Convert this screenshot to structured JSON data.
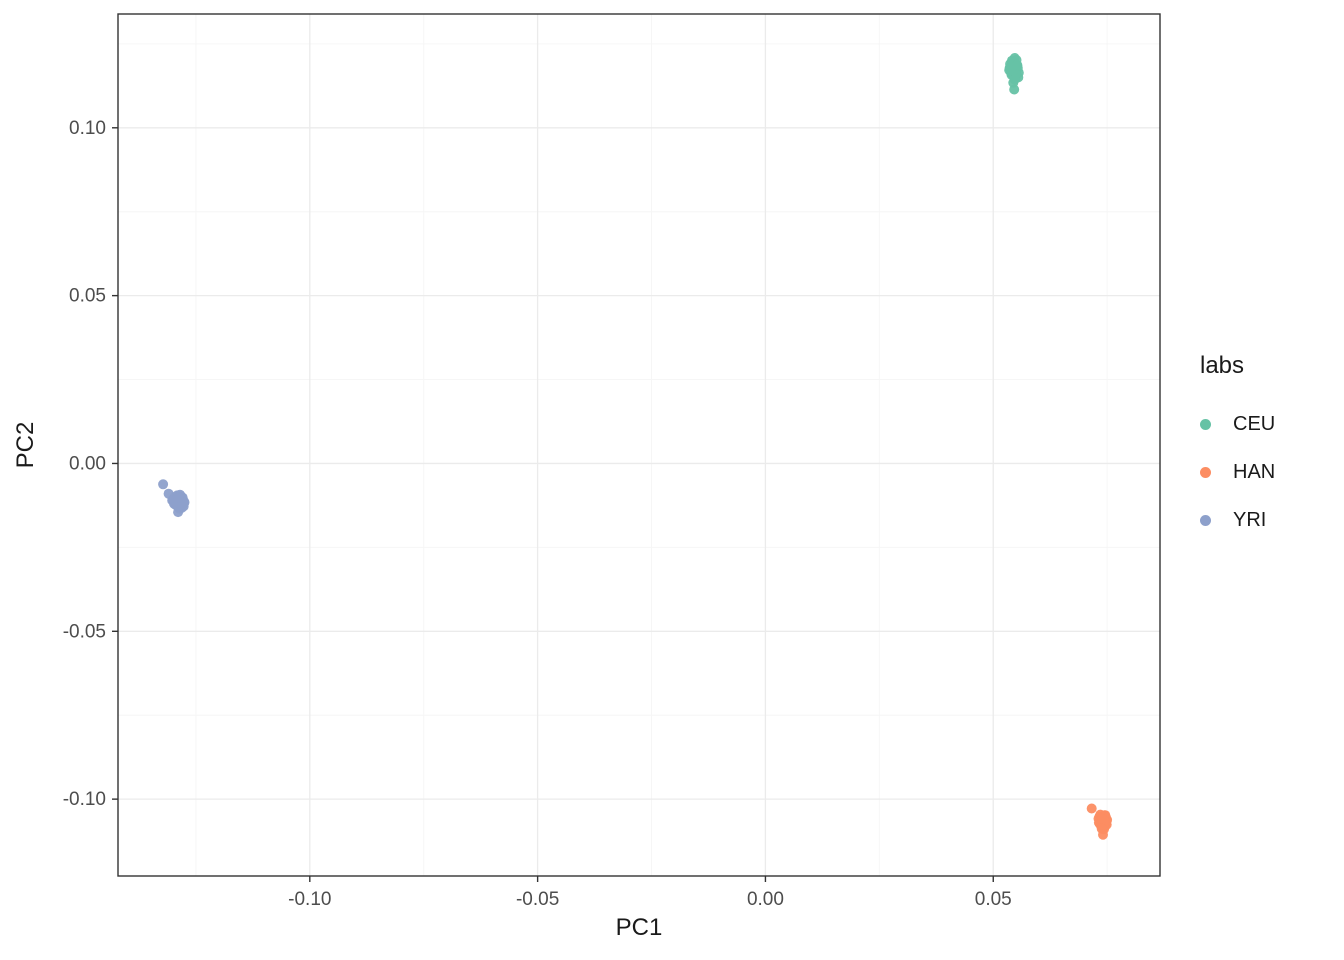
{
  "figure": {
    "background": "#ffffff",
    "panel_border_color": "#333333",
    "grid_major_color": "#ebebeb",
    "grid_minor_color": "#f6f6f6",
    "tick_color": "#333333",
    "tick_label_color": "#4d4d4d"
  },
  "chart_data": {
    "type": "scatter",
    "title": "",
    "xlabel": "PC1",
    "ylabel": "PC2",
    "xlim": [
      -0.1421,
      0.0866
    ],
    "ylim": [
      -0.1229,
      0.1339
    ],
    "x_ticks": [
      -0.1,
      -0.05,
      0.0,
      0.05
    ],
    "x_tick_labels": [
      "-0.10",
      "-0.05",
      "0.00",
      "0.05"
    ],
    "y_ticks": [
      -0.1,
      -0.05,
      0.0,
      0.05,
      0.1
    ],
    "y_tick_labels": [
      "-0.10",
      "-0.05",
      "0.00",
      "0.05",
      "0.10"
    ],
    "x_minor_ticks": [
      -0.125,
      -0.075,
      -0.025,
      0.025,
      0.075
    ],
    "y_minor_ticks": [
      -0.075,
      -0.025,
      0.025,
      0.075,
      0.125
    ],
    "grid": true,
    "legend": {
      "title": "labs",
      "position": "right"
    },
    "series": [
      {
        "name": "CEU",
        "color": "#66C2A5",
        "points": [
          [
            0.0538,
            0.1182
          ],
          [
            0.0545,
            0.1196
          ],
          [
            0.0551,
            0.117
          ],
          [
            0.054,
            0.1158
          ],
          [
            0.0553,
            0.1186
          ],
          [
            0.0547,
            0.1208
          ],
          [
            0.0542,
            0.1176
          ],
          [
            0.0549,
            0.1148
          ],
          [
            0.0556,
            0.1164
          ],
          [
            0.0535,
            0.1172
          ],
          [
            0.0544,
            0.1134
          ],
          [
            0.055,
            0.119
          ],
          [
            0.0541,
            0.12
          ],
          [
            0.0547,
            0.1168
          ],
          [
            0.0554,
            0.1178
          ],
          [
            0.0537,
            0.119
          ],
          [
            0.0545,
            0.1156
          ],
          [
            0.0551,
            0.1202
          ],
          [
            0.0543,
            0.1186
          ],
          [
            0.0548,
            0.1172
          ],
          [
            0.0539,
            0.1164
          ],
          [
            0.0555,
            0.115
          ],
          [
            0.0546,
            0.1182
          ],
          [
            0.0542,
            0.1194
          ],
          [
            0.055,
            0.116
          ],
          [
            0.0536,
            0.1178
          ],
          [
            0.0544,
            0.117
          ],
          [
            0.0552,
            0.1188
          ],
          [
            0.0547,
            0.1144
          ],
          [
            0.054,
            0.118
          ],
          [
            0.0546,
            0.1114
          ]
        ]
      },
      {
        "name": "HAN",
        "color": "#FC8D62",
        "points": [
          [
            0.0733,
            -0.1052
          ],
          [
            0.0741,
            -0.106
          ],
          [
            0.0748,
            -0.107
          ],
          [
            0.0736,
            -0.1078
          ],
          [
            0.0744,
            -0.1048
          ],
          [
            0.075,
            -0.1062
          ],
          [
            0.0738,
            -0.1066
          ],
          [
            0.0745,
            -0.1082
          ],
          [
            0.0731,
            -0.1058
          ],
          [
            0.0742,
            -0.1072
          ],
          [
            0.0747,
            -0.1054
          ],
          [
            0.0735,
            -0.1046
          ],
          [
            0.0743,
            -0.109
          ],
          [
            0.0749,
            -0.1076
          ],
          [
            0.0737,
            -0.1062
          ],
          [
            0.0744,
            -0.1056
          ],
          [
            0.0732,
            -0.107
          ],
          [
            0.0746,
            -0.1048
          ],
          [
            0.074,
            -0.1084
          ],
          [
            0.0748,
            -0.1058
          ],
          [
            0.0734,
            -0.1074
          ],
          [
            0.0742,
            -0.105
          ],
          [
            0.0745,
            -0.1066
          ],
          [
            0.0738,
            -0.1088
          ],
          [
            0.0716,
            -0.1028
          ],
          [
            0.0741,
            -0.1106
          ],
          [
            0.0739,
            -0.1058
          ]
        ]
      },
      {
        "name": "YRI",
        "color": "#8DA0CB",
        "points": [
          [
            -0.1292,
            -0.0105
          ],
          [
            -0.1285,
            -0.0118
          ],
          [
            -0.1278,
            -0.011
          ],
          [
            -0.1296,
            -0.0122
          ],
          [
            -0.1282,
            -0.0098
          ],
          [
            -0.1288,
            -0.013
          ],
          [
            -0.1275,
            -0.0115
          ],
          [
            -0.13,
            -0.0108
          ],
          [
            -0.1283,
            -0.0125
          ],
          [
            -0.129,
            -0.0112
          ],
          [
            -0.1279,
            -0.0102
          ],
          [
            -0.1294,
            -0.0118
          ],
          [
            -0.1286,
            -0.0135
          ],
          [
            -0.1281,
            -0.0108
          ],
          [
            -0.1297,
            -0.01
          ],
          [
            -0.1284,
            -0.012
          ],
          [
            -0.1277,
            -0.0128
          ],
          [
            -0.1291,
            -0.0095
          ],
          [
            -0.1287,
            -0.0115
          ],
          [
            -0.128,
            -0.0122
          ],
          [
            -0.1302,
            -0.011
          ],
          [
            -0.1289,
            -0.0105
          ],
          [
            -0.1276,
            -0.0118
          ],
          [
            -0.1293,
            -0.0125
          ],
          [
            -0.1285,
            -0.0093
          ],
          [
            -0.1283,
            -0.0112
          ],
          [
            -0.1298,
            -0.012
          ],
          [
            -0.1288,
            -0.0102
          ],
          [
            -0.1281,
            -0.0132
          ],
          [
            -0.1322,
            -0.0062
          ],
          [
            -0.131,
            -0.009
          ],
          [
            -0.1289,
            -0.0145
          ]
        ]
      }
    ]
  }
}
